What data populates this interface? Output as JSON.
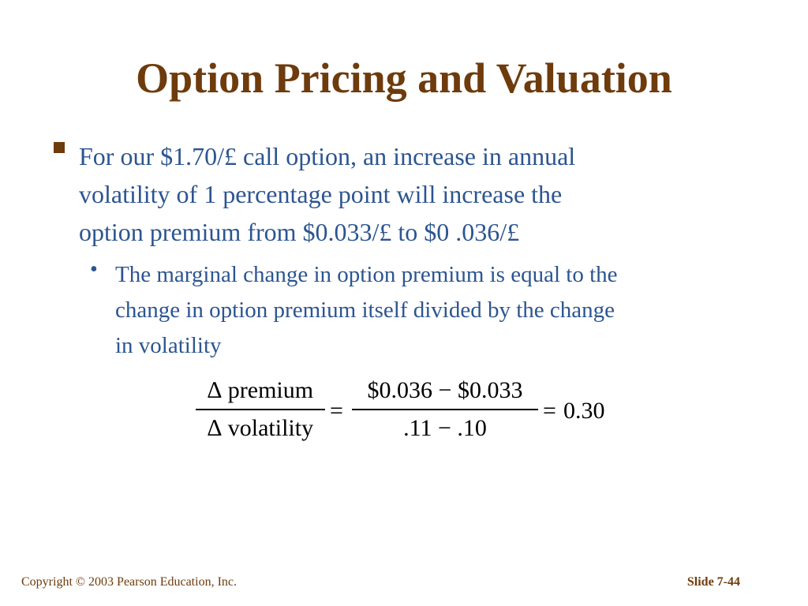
{
  "slide": {
    "title": "Option Pricing and Valuation",
    "bullet1_lines": [
      "For our $1.70/£ call option, an increase in annual",
      "volatility of 1 percentage point will increase the",
      "option premium from $0.033/£ to $0 .036/£"
    ],
    "bullet2_lines": [
      "The marginal change in option premium is equal to the",
      "change in option premium itself divided by the change",
      "in volatility"
    ],
    "bullet2_marker": "•",
    "formula": {
      "lhs_num": "∆ premium",
      "lhs_den": "∆ volatility",
      "eq1": "=",
      "rhs_num": "$0.036 − $0.033",
      "rhs_den": ".11 − .10",
      "eq2": "=",
      "result": "0.30"
    },
    "footer": {
      "copyright": "Copyright © 2003 Pearson Education, Inc.",
      "slide_number": "Slide 7-44"
    }
  },
  "colors": {
    "title": "#6e3b0c",
    "body_text": "#2c5590",
    "footer": "#6e3b0c"
  }
}
